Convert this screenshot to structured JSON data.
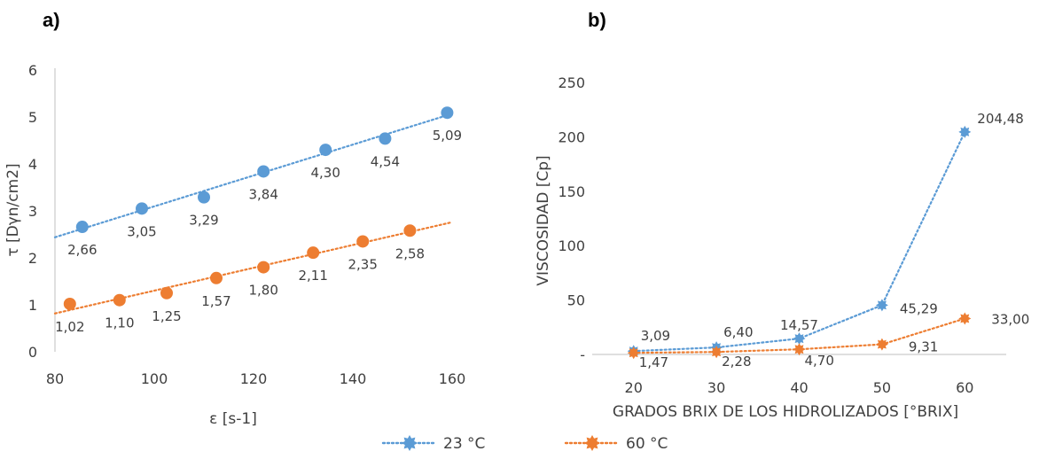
{
  "colors": {
    "series_23": "#5b9bd5",
    "series_60": "#ed7d31",
    "axis": "#bfbfbf",
    "text": "#404040"
  },
  "legend": [
    {
      "name": "23 °C",
      "color": "#5b9bd5",
      "marker": "star"
    },
    {
      "name": "60 °C",
      "color": "#ed7d31",
      "marker": "star"
    }
  ],
  "chart_data": [
    {
      "panel_label": "a)",
      "type": "scatter",
      "xlabel": "ε   [s-1]",
      "ylabel": "τ      [Dγn/cm2]",
      "xlim": [
        80,
        160
      ],
      "ylim": [
        0,
        6
      ],
      "xticks": [
        "80",
        "100",
        "120",
        "140",
        "160"
      ],
      "yticks": [
        "0",
        "1",
        "2",
        "3",
        "4",
        "5",
        "6"
      ],
      "trendline": "linear-dotted",
      "series": [
        {
          "color": "#5b9bd5",
          "points": [
            {
              "x": 85.5,
              "y": 2.66,
              "label": "2,66"
            },
            {
              "x": 97.5,
              "y": 3.05,
              "label": "3,05"
            },
            {
              "x": 110,
              "y": 3.29,
              "label": "3,29"
            },
            {
              "x": 122,
              "y": 3.84,
              "label": "3,84"
            },
            {
              "x": 134.5,
              "y": 4.3,
              "label": "4,30"
            },
            {
              "x": 146.5,
              "y": 4.54,
              "label": "4,54"
            },
            {
              "x": 159,
              "y": 5.09,
              "label": "5,09"
            }
          ]
        },
        {
          "color": "#ed7d31",
          "points": [
            {
              "x": 83,
              "y": 1.02,
              "label": "1,02"
            },
            {
              "x": 93,
              "y": 1.1,
              "label": "1,10"
            },
            {
              "x": 102.5,
              "y": 1.25,
              "label": "1,25"
            },
            {
              "x": 112.5,
              "y": 1.57,
              "label": "1,57"
            },
            {
              "x": 122,
              "y": 1.8,
              "label": "1,80"
            },
            {
              "x": 132,
              "y": 2.11,
              "label": "2,11"
            },
            {
              "x": 142,
              "y": 2.35,
              "label": "2,35"
            },
            {
              "x": 151.5,
              "y": 2.58,
              "label": "2,58"
            }
          ]
        }
      ]
    },
    {
      "panel_label": "b)",
      "type": "line",
      "xlabel": "GRADOS BRIX DE LOS HIDROLIZADOS [°BRIX]",
      "ylabel": "VISCOSIDAD  [Cp]",
      "categories": [
        "20",
        "30",
        "40",
        "50",
        "60"
      ],
      "ylim": [
        0,
        250
      ],
      "yticks": [
        "-",
        "50",
        "100",
        "150",
        "200",
        "250"
      ],
      "series": [
        {
          "name": "23 °C",
          "color": "#5b9bd5",
          "values": [
            3.09,
            6.4,
            14.57,
            45.29,
            204.48
          ],
          "labels": [
            "3,09",
            "6,40",
            "14,57",
            "45,29",
            "204,48"
          ]
        },
        {
          "name": "60 °C",
          "color": "#ed7d31",
          "values": [
            1.47,
            2.28,
            4.7,
            9.31,
            33.0
          ],
          "labels": [
            "1,47",
            "2,28",
            "4,70",
            "9,31",
            "33,00"
          ]
        }
      ]
    }
  ]
}
